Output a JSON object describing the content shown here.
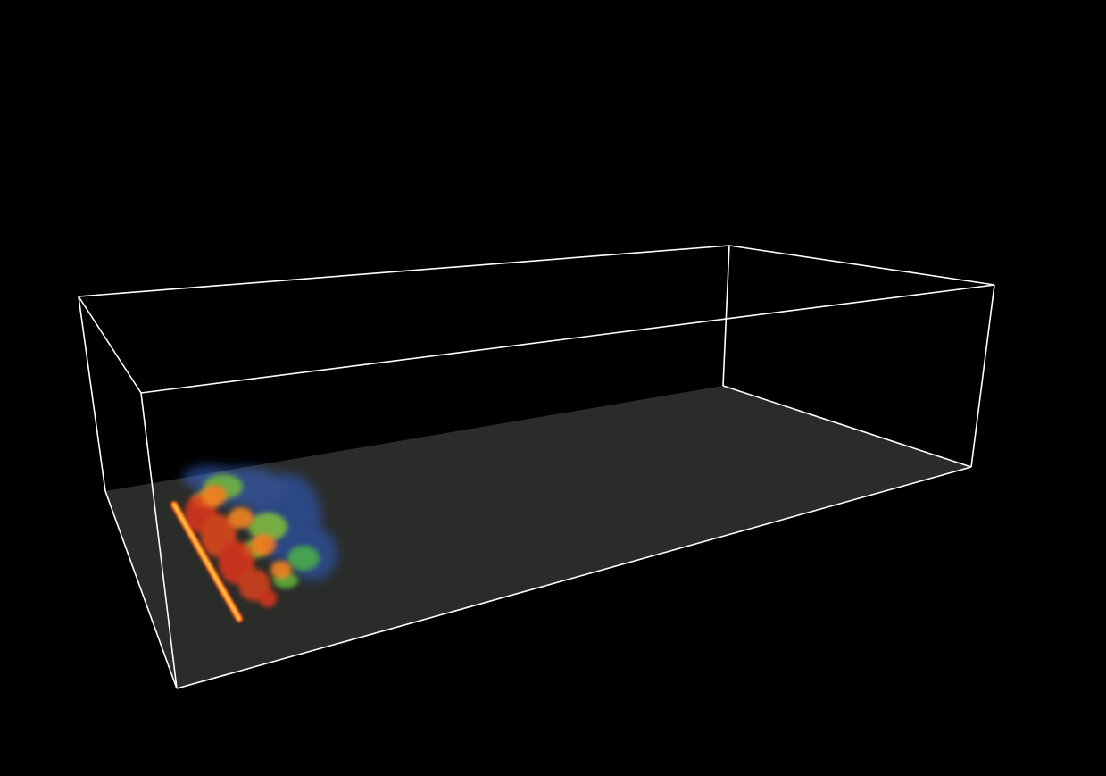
{
  "scene": {
    "background_color": "#000000",
    "floor_color": "#2a2c29",
    "bounding_box_color": "#ffffff",
    "volume_colormap": [
      "#ffd24a",
      "#ff7a1a",
      "#e2361c",
      "#8fd02e",
      "#2e5fd0"
    ]
  }
}
